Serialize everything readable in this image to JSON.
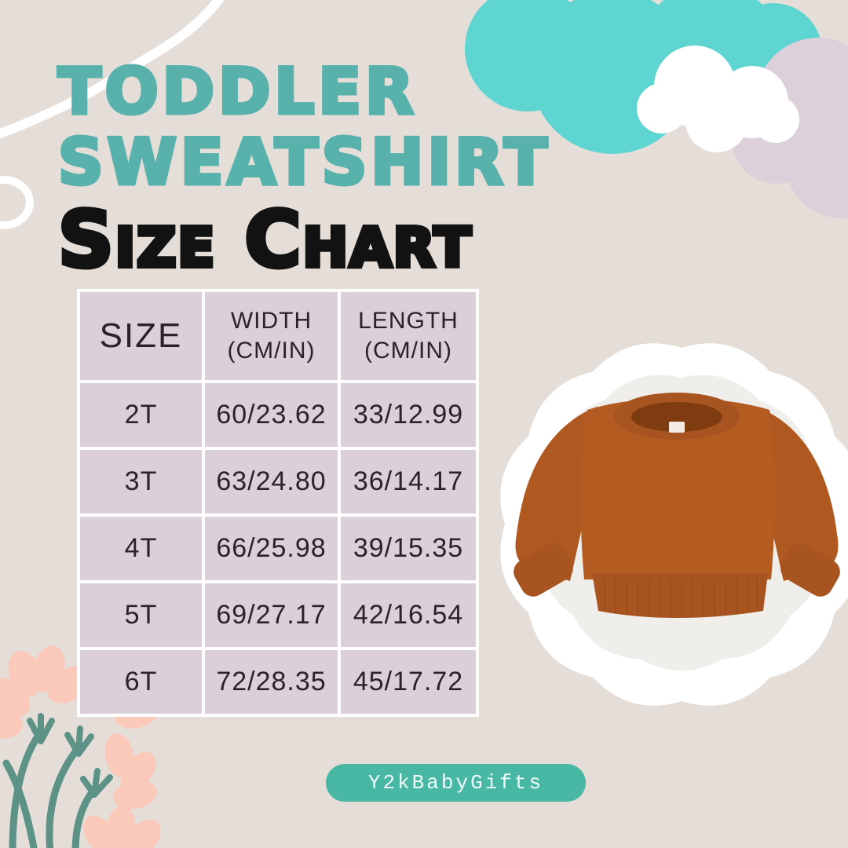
{
  "header": {
    "line1": "TODDLER",
    "line2": "SWEATSHIRT",
    "line3": "Size Chart"
  },
  "chart_data": {
    "type": "table",
    "title": "Toddler Sweatshirt Size Chart",
    "columns": [
      "SIZE",
      "WIDTH (CM/IN)",
      "LENGTH (CM/IN)"
    ],
    "rows": [
      [
        "2T",
        "60/23.62",
        "33/12.99"
      ],
      [
        "3T",
        "63/24.80",
        "36/14.17"
      ],
      [
        "4T",
        "66/25.98",
        "39/15.35"
      ],
      [
        "5T",
        "69/27.17",
        "42/16.54"
      ],
      [
        "6T",
        "72/28.35",
        "45/17.72"
      ]
    ]
  },
  "table": {
    "columns": [
      {
        "line1": "SIZE",
        "line2": ""
      },
      {
        "line1": "WIDTH",
        "line2": "(CM/IN)"
      },
      {
        "line1": "LENGTH",
        "line2": "(CM/IN)"
      }
    ],
    "rows": [
      [
        "2T",
        "60/23.62",
        "33/12.99"
      ],
      [
        "3T",
        "63/24.80",
        "36/14.17"
      ],
      [
        "4T",
        "66/25.98",
        "39/15.35"
      ],
      [
        "5T",
        "69/27.17",
        "42/16.54"
      ],
      [
        "6T",
        "72/28.35",
        "45/17.72"
      ]
    ]
  },
  "footer": {
    "brand": "Y2kBabyGifts"
  },
  "colors": {
    "background": "#E5DED8",
    "title_teal": "#58B1AB",
    "title_black": "#121212",
    "cloud_teal": "#5FD5D2",
    "cloud_white": "#FFFFFF",
    "cloud_lavender": "#DCD0DA",
    "table_cell_lavender": "#DBCFD9",
    "table_gap_white": "#FFFFFF",
    "table_text": "#2A242A",
    "badge_teal": "#48B7A4",
    "badge_text": "#F0FAF7",
    "petal_pink": "#FBC9BA",
    "stem_green": "#5D9287",
    "sweatshirt_rust": "#B45B21",
    "photo_circle_gray": "#EFEEEB"
  }
}
